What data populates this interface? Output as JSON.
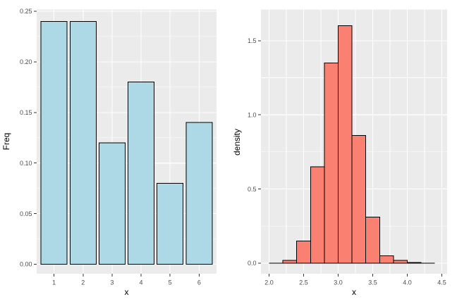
{
  "figure": {
    "background": "#FFFFFF",
    "panel_background": "#EBEBEB",
    "grid_color": "#FFFFFF",
    "tick_label_color": "#4D4D4D",
    "tick_mark_color": "#333333",
    "axis_title_color": "#000000"
  },
  "chart_data": [
    {
      "type": "bar",
      "title": "",
      "xlabel": "x",
      "ylabel": "Freq",
      "categories": [
        "1",
        "2",
        "3",
        "4",
        "5",
        "6"
      ],
      "values": [
        0.24,
        0.24,
        0.12,
        0.18,
        0.08,
        0.14
      ],
      "bar_width_frac": 0.9,
      "fill": "#ADD8E6",
      "stroke": "#000000",
      "ylim": [
        0,
        0.25
      ],
      "y_ticks": [
        0,
        0.05,
        0.1,
        0.15,
        0.2,
        0.25
      ],
      "y_tick_labels": [
        "0.00",
        "0.05",
        "0.10",
        "0.15",
        "0.20",
        "0.25"
      ],
      "y_minor_ticks": [
        0.025,
        0.075,
        0.125,
        0.175,
        0.225
      ],
      "grid": true,
      "legend": false
    },
    {
      "type": "histogram",
      "title": "",
      "xlabel": "x",
      "ylabel": "density",
      "bin_start": 2.0,
      "bin_width": 0.2,
      "bin_edges": [
        2.0,
        2.2,
        2.4,
        2.6,
        2.8,
        3.0,
        3.2,
        3.4,
        3.6,
        3.8,
        4.0,
        4.2,
        4.4
      ],
      "densities": [
        0,
        0.02,
        0.15,
        0.65,
        1.35,
        1.6,
        0.86,
        0.31,
        0.05,
        0.02,
        0.005,
        0
      ],
      "fill": "#FA8072",
      "stroke": "#000000",
      "xlim": [
        2.0,
        4.4
      ],
      "ylim": [
        0,
        1.6
      ],
      "x_ticks": [
        2.0,
        2.5,
        3.0,
        3.5,
        4.0,
        4.5
      ],
      "x_tick_labels": [
        "2.0",
        "2.5",
        "3.0",
        "3.5",
        "4.0",
        "4.5"
      ],
      "x_minor_ticks": [
        2.25,
        2.75,
        3.25,
        3.75,
        4.25
      ],
      "y_ticks": [
        0,
        0.5,
        1.0,
        1.5
      ],
      "y_tick_labels": [
        "0.0",
        "0.5",
        "1.0",
        "1.5"
      ],
      "y_minor_ticks": [
        0.25,
        0.75,
        1.25
      ],
      "grid": true,
      "legend": false
    }
  ]
}
